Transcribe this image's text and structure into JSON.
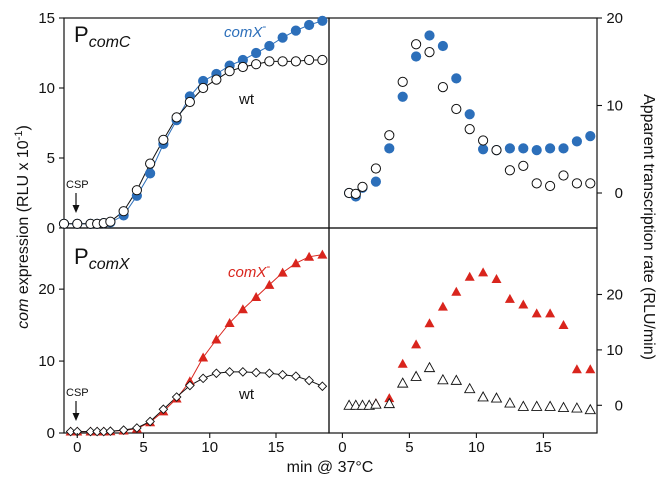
{
  "figure": {
    "y_label_left": "com expression (RLU x 10-1)",
    "y_label_right": "Apparent transcription rate (RLU/min)",
    "x_label": "min @ 37°C"
  },
  "panels": [
    {
      "label_main": "P",
      "label_sub": "comC",
      "ann": "CSP",
      "series_labels": [
        "comX",
        "wt"
      ]
    },
    {
      "label_main": "P",
      "label_sub": "comX",
      "ann": "CSP",
      "series_labels": [
        "comX",
        "wt"
      ]
    }
  ],
  "chart_data": [
    {
      "id": "comC-expression",
      "type": "line",
      "x_ticks": [
        0,
        5,
        10,
        15
      ],
      "y_ticks": [
        0,
        5,
        10,
        15
      ],
      "xlim": [
        -1,
        19
      ],
      "ylim": [
        0,
        15
      ],
      "series": [
        {
          "name": "comX-",
          "color": "#2c6fba",
          "marker": "filled-circle",
          "x": [
            -1,
            0,
            1,
            1.5,
            2,
            2.5,
            3.5,
            4.5,
            5.5,
            6.5,
            7.5,
            8.5,
            9.5,
            10.5,
            11.5,
            12.5,
            13.5,
            14.5,
            15.5,
            16.5,
            17.5,
            18.5
          ],
          "y": [
            0.3,
            0.3,
            0.3,
            0.3,
            0.35,
            0.4,
            0.9,
            2.3,
            3.9,
            6.0,
            7.7,
            9.4,
            10.5,
            11.0,
            11.6,
            12.0,
            12.5,
            13.0,
            13.6,
            14.1,
            14.5,
            14.8
          ]
        },
        {
          "name": "wt",
          "color": "#111111",
          "marker": "open-circle",
          "x": [
            -1,
            0,
            1,
            1.5,
            2,
            2.5,
            3.5,
            4.5,
            5.5,
            6.5,
            7.5,
            8.5,
            9.5,
            10.5,
            11.5,
            12.5,
            13.5,
            14.5,
            15.5,
            16.5,
            17.5,
            18.5
          ],
          "y": [
            0.3,
            0.3,
            0.3,
            0.3,
            0.35,
            0.45,
            1.2,
            2.7,
            4.6,
            6.3,
            7.9,
            9.0,
            10.0,
            10.6,
            11.2,
            11.5,
            11.7,
            11.9,
            11.9,
            11.9,
            12.0,
            12.0
          ]
        }
      ]
    },
    {
      "id": "comC-rate",
      "type": "scatter",
      "x_ticks": [
        0,
        5,
        10,
        15
      ],
      "y_ticks": [
        0,
        10,
        20
      ],
      "xlim": [
        -1,
        19
      ],
      "ylim": [
        -4,
        20
      ],
      "series": [
        {
          "name": "comX-",
          "color": "#2c6fba",
          "marker": "filled-circle",
          "x": [
            0.5,
            1,
            1.5,
            2.5,
            3.5,
            4.5,
            5.5,
            6.5,
            7.5,
            8.5,
            9.5,
            10.5,
            11.5,
            12.5,
            13.5,
            14.5,
            15.5,
            16.5,
            17.5,
            18.5
          ],
          "y": [
            0,
            -0.4,
            0.6,
            1.3,
            5.1,
            11.0,
            15.6,
            18.0,
            16.8,
            13.1,
            9.0,
            5.0,
            4.9,
            5.1,
            5.1,
            4.9,
            5.1,
            5.1,
            5.9,
            6.5
          ]
        },
        {
          "name": "wt",
          "color": "#111111",
          "marker": "open-circle",
          "x": [
            0.5,
            1,
            1.5,
            2.5,
            3.5,
            4.5,
            5.5,
            6.5,
            7.5,
            8.5,
            9.5,
            10.5,
            11.5,
            12.5,
            13.5,
            14.5,
            15.5,
            16.5,
            17.5,
            18.5
          ],
          "y": [
            0,
            -0.1,
            0.7,
            2.8,
            6.6,
            12.7,
            17.0,
            16.1,
            12.1,
            9.6,
            7.3,
            6.0,
            4.9,
            2.6,
            3.1,
            1.1,
            0.8,
            2.0,
            1.1,
            1.1
          ]
        }
      ]
    },
    {
      "id": "comX-expression",
      "type": "line",
      "x_ticks": [
        0,
        5,
        10,
        15
      ],
      "y_ticks": [
        0,
        10,
        20
      ],
      "xlim": [
        -1,
        19
      ],
      "ylim": [
        0,
        28.5
      ],
      "series": [
        {
          "name": "comX-",
          "color": "#d9251d",
          "marker": "filled-triangle",
          "x": [
            -0.5,
            0,
            1,
            1.5,
            2,
            2.5,
            3.5,
            4.5,
            5.5,
            6.5,
            7.5,
            8.5,
            9.5,
            10.5,
            11.5,
            12.5,
            13.5,
            14.5,
            15.5,
            16.5,
            17.5,
            18.5
          ],
          "y": [
            0.2,
            0.2,
            0.2,
            0.2,
            0.2,
            0.25,
            0.35,
            0.6,
            1.5,
            3.0,
            4.8,
            7.2,
            10.5,
            13.0,
            15.3,
            17.2,
            18.9,
            20.6,
            22.3,
            23.6,
            24.5,
            24.8
          ]
        },
        {
          "name": "wt",
          "color": "#111111",
          "marker": "open-diamond",
          "x": [
            -0.5,
            0,
            1,
            1.5,
            2,
            2.5,
            3.5,
            4.5,
            5.5,
            6.5,
            7.5,
            8.5,
            9.5,
            10.5,
            11.5,
            12.5,
            13.5,
            14.5,
            15.5,
            16.5,
            17.5,
            18.5
          ],
          "y": [
            0.2,
            0.2,
            0.2,
            0.2,
            0.2,
            0.25,
            0.4,
            0.7,
            1.6,
            3.3,
            5.0,
            6.6,
            7.6,
            8.3,
            8.5,
            8.5,
            8.4,
            8.3,
            8.1,
            7.9,
            7.3,
            6.5
          ]
        }
      ]
    },
    {
      "id": "comX-rate",
      "type": "scatter",
      "x_ticks": [
        0,
        5,
        10,
        15
      ],
      "y_ticks": [
        0,
        10,
        20
      ],
      "xlim": [
        -1,
        19
      ],
      "ylim": [
        -5,
        32
      ],
      "series": [
        {
          "name": "comX-",
          "color": "#d9251d",
          "marker": "filled-triangle",
          "x": [
            0.5,
            1,
            1.5,
            2,
            2.5,
            3.5,
            4.5,
            5.5,
            6.5,
            7.5,
            8.5,
            9.5,
            10.5,
            11.5,
            12.5,
            13.5,
            14.5,
            15.5,
            16.5,
            17.5,
            18.5
          ],
          "y": [
            0,
            0,
            0,
            0,
            0.4,
            1.3,
            7.5,
            11.0,
            14.8,
            17.8,
            20.5,
            23.2,
            24.0,
            22.8,
            19.2,
            18.2,
            16.6,
            16.6,
            14.5,
            6.5,
            6.5
          ]
        },
        {
          "name": "wt",
          "color": "#111111",
          "marker": "open-triangle",
          "x": [
            0.5,
            1,
            1.5,
            2,
            2.5,
            3.5,
            4.5,
            5.5,
            6.5,
            7.5,
            8.5,
            9.5,
            10.5,
            11.5,
            12.5,
            13.5,
            14.5,
            15.5,
            16.5,
            17.5,
            18.5
          ],
          "y": [
            0,
            0,
            0,
            0,
            0.2,
            0.3,
            4.0,
            5.2,
            6.8,
            4.6,
            4.5,
            3.0,
            1.5,
            1.3,
            0.4,
            -0.2,
            -0.2,
            -0.2,
            -0.4,
            -0.5,
            -0.8
          ]
        }
      ]
    }
  ]
}
